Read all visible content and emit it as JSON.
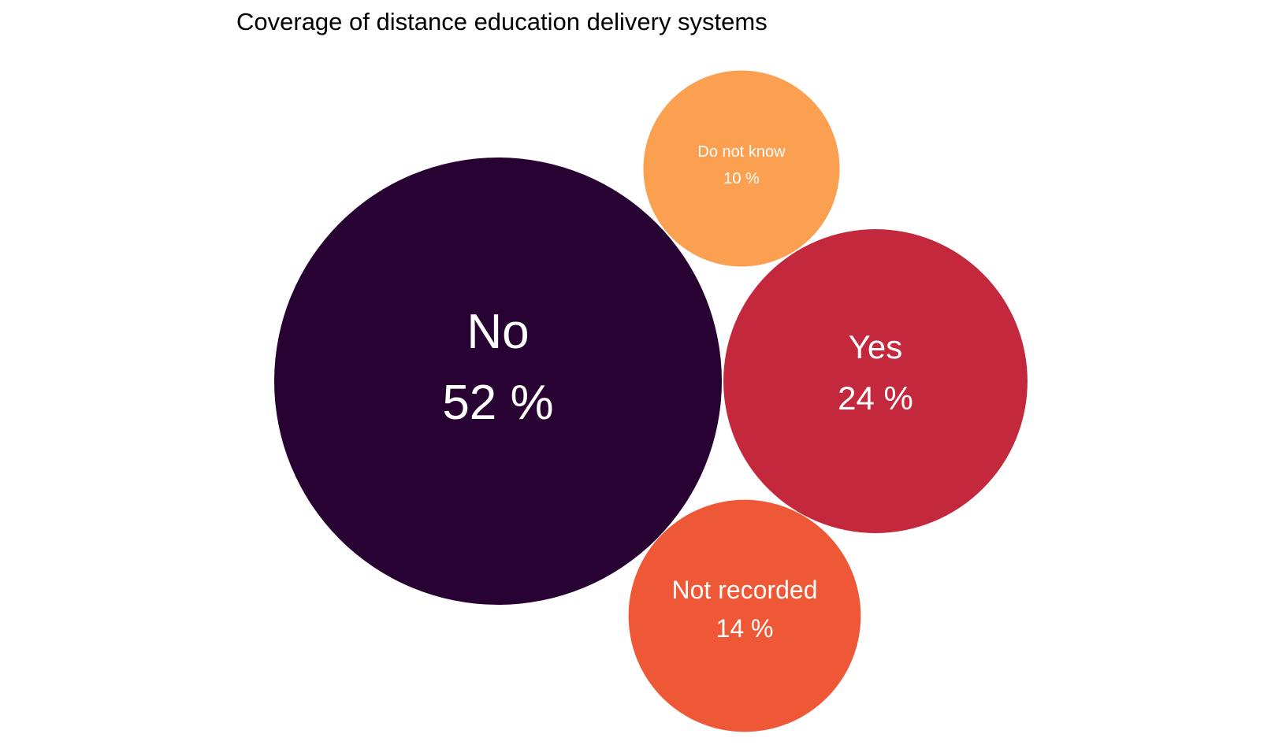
{
  "chart_data": {
    "type": "bubble",
    "title": "Coverage of distance education delivery systems",
    "unit": "%",
    "categories": [
      "No",
      "Yes",
      "Not recorded",
      "Do not know"
    ],
    "values": [
      52,
      24,
      14,
      10
    ],
    "colors": [
      "#280233",
      "#c4283d",
      "#ee5836",
      "#fba050"
    ],
    "legend": "none",
    "grid": false
  }
}
